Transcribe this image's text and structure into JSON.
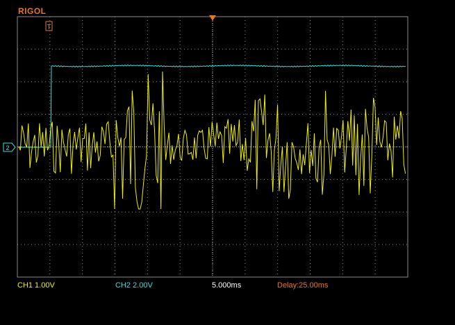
{
  "app": {
    "brand": "RIGOL"
  },
  "status": {
    "ch1": "CH1 1.00V",
    "ch2": "CH2 2.00V",
    "timebase": "5.000ms",
    "delay": "Delay:25.00ms"
  },
  "markers": {
    "trigger_time_marker": "T",
    "channel_ground_marker": "2"
  },
  "colors": {
    "ch1": "#f0f000",
    "ch2": "#38e0e0",
    "accent": "#e8762a",
    "grid": "#8a8a8a"
  },
  "icons": [
    "trigger-time-marker-icon",
    "trigger-level-marker-icon",
    "channel-2-ground-marker-icon"
  ]
}
